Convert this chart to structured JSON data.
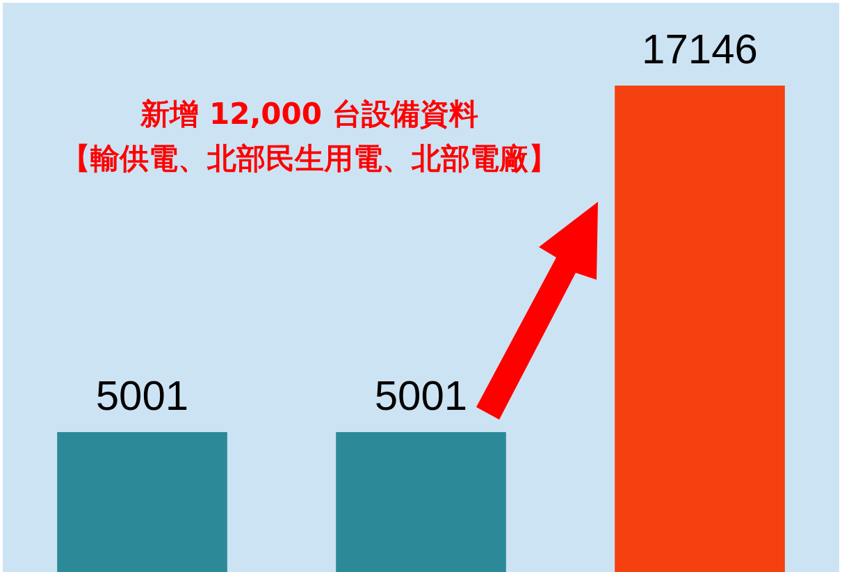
{
  "chart_data": {
    "type": "bar",
    "categories": [
      null,
      null,
      null
    ],
    "values": [
      5001,
      5001,
      17146
    ],
    "colors": [
      "#2c8a98",
      "#2c8a98",
      "#f5400f"
    ],
    "data_labels": true,
    "annotations": [
      "新增 12,000 台設備資料",
      "【輸供電、北部民生用電、北部電廠】"
    ]
  }
}
